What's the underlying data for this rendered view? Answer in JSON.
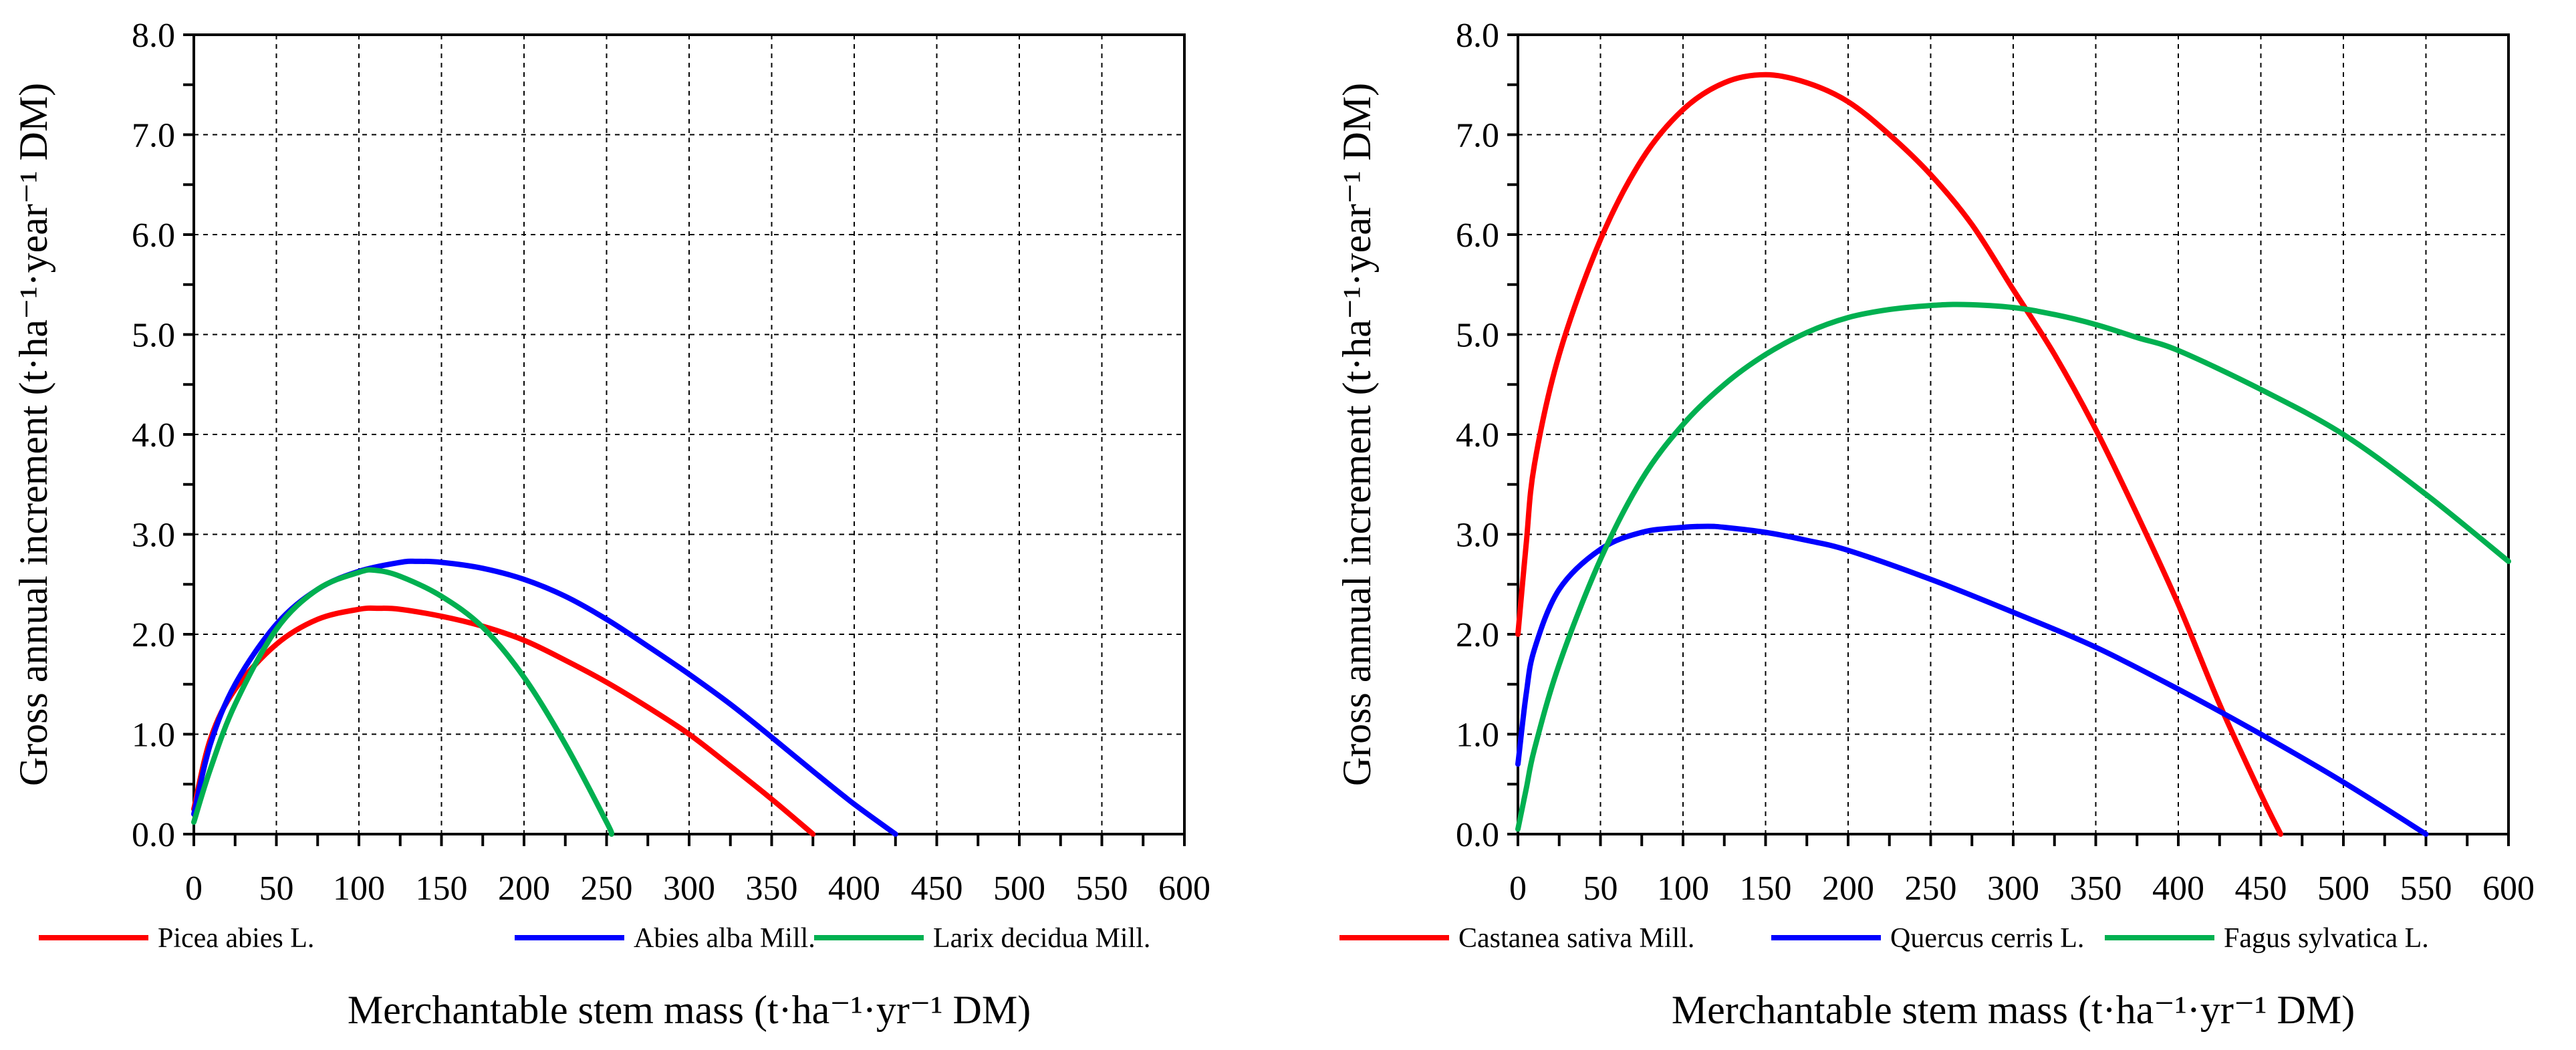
{
  "chart_data": [
    {
      "type": "line",
      "xlabel": "Merchantable stem mass (t·ha⁻¹·yr⁻¹  DM)",
      "ylabel": "Gross annual increment (t·ha⁻¹·year⁻¹ DM)",
      "xlim": [
        0,
        600
      ],
      "ylim": [
        0,
        8
      ],
      "x_ticks": [
        0,
        50,
        100,
        150,
        200,
        250,
        300,
        350,
        400,
        450,
        500,
        550,
        600
      ],
      "x_tick_labels": [
        "0",
        "50",
        "100",
        "150",
        "200",
        "250",
        "300",
        "350",
        "400",
        "450",
        "500",
        "550",
        "600"
      ],
      "y_ticks": [
        0,
        1,
        2,
        3,
        4,
        5,
        6,
        7,
        8
      ],
      "y_tick_labels": [
        "0.0",
        "1.0",
        "2.0",
        "3.0",
        "4.0",
        "5.0",
        "6.0",
        "7.0",
        "8.0"
      ],
      "grid": true,
      "legend_position": "bottom",
      "series": [
        {
          "name": "Picea abies L.",
          "color": "#ff0000",
          "x": [
            0,
            10,
            25,
            50,
            75,
            100,
            112,
            125,
            150,
            175,
            200,
            225,
            250,
            275,
            300,
            325,
            350,
            375
          ],
          "y": [
            0.25,
            0.95,
            1.45,
            1.9,
            2.15,
            2.25,
            2.26,
            2.25,
            2.18,
            2.08,
            1.94,
            1.74,
            1.52,
            1.27,
            1.0,
            0.68,
            0.35,
            0.0
          ]
        },
        {
          "name": "Abies alba Mill.",
          "color": "#0000ff",
          "x": [
            0,
            10,
            25,
            50,
            75,
            100,
            125,
            135,
            150,
            175,
            200,
            225,
            250,
            275,
            300,
            325,
            350,
            375,
            400,
            425
          ],
          "y": [
            0.2,
            0.9,
            1.5,
            2.1,
            2.45,
            2.63,
            2.72,
            2.73,
            2.72,
            2.66,
            2.55,
            2.38,
            2.15,
            1.88,
            1.6,
            1.3,
            0.97,
            0.63,
            0.3,
            0.0
          ]
        },
        {
          "name": "Larix decidua Mill.",
          "color": "#00b050",
          "x": [
            0,
            10,
            25,
            50,
            75,
            100,
            110,
            125,
            150,
            175,
            200,
            225,
            250,
            253
          ],
          "y": [
            0.12,
            0.65,
            1.3,
            2.05,
            2.45,
            2.62,
            2.64,
            2.58,
            2.38,
            2.07,
            1.57,
            0.9,
            0.12,
            0.0
          ]
        }
      ]
    },
    {
      "type": "line",
      "xlabel": "Merchantable stem mass (t·ha⁻¹·yr⁻¹  DM)",
      "ylabel": "Gross annual increment (t·ha⁻¹·year⁻¹ DM)",
      "xlim": [
        0,
        600
      ],
      "ylim": [
        0,
        8
      ],
      "x_ticks": [
        0,
        50,
        100,
        150,
        200,
        250,
        300,
        350,
        400,
        450,
        500,
        550,
        600
      ],
      "x_tick_labels": [
        "0",
        "50",
        "100",
        "150",
        "200",
        "250",
        "300",
        "350",
        "400",
        "450",
        "500",
        "550",
        "600"
      ],
      "y_ticks": [
        0,
        1,
        2,
        3,
        4,
        5,
        6,
        7,
        8
      ],
      "y_tick_labels": [
        "0.0",
        "1.0",
        "2.0",
        "3.0",
        "4.0",
        "5.0",
        "6.0",
        "7.0",
        "8.0"
      ],
      "grid": true,
      "legend_position": "bottom",
      "series": [
        {
          "name": "Castanea sativa Mill.",
          "color": "#ff0000",
          "x": [
            0,
            5,
            10,
            25,
            50,
            75,
            100,
            125,
            150,
            175,
            200,
            225,
            250,
            275,
            300,
            325,
            350,
            375,
            400,
            425,
            450,
            462
          ],
          "y": [
            2.0,
            2.9,
            3.7,
            4.8,
            5.95,
            6.75,
            7.25,
            7.52,
            7.6,
            7.52,
            7.33,
            7.0,
            6.6,
            6.1,
            5.45,
            4.8,
            4.05,
            3.2,
            2.3,
            1.3,
            0.4,
            0.0
          ]
        },
        {
          "name": "Quercus cerris L.",
          "color": "#0000ff",
          "x": [
            0,
            5,
            10,
            25,
            50,
            75,
            100,
            115,
            125,
            150,
            175,
            200,
            250,
            300,
            350,
            400,
            450,
            500,
            550
          ],
          "y": [
            0.7,
            1.4,
            1.85,
            2.45,
            2.85,
            3.02,
            3.07,
            3.08,
            3.07,
            3.02,
            2.94,
            2.84,
            2.55,
            2.22,
            1.87,
            1.45,
            1.0,
            0.52,
            0.0
          ]
        },
        {
          "name": "Fagus sylvatica L.",
          "color": "#00b050",
          "x": [
            0,
            5,
            10,
            25,
            50,
            75,
            100,
            125,
            150,
            175,
            200,
            225,
            250,
            270,
            300,
            325,
            350,
            375,
            400,
            450,
            500,
            550,
            600
          ],
          "y": [
            0.05,
            0.45,
            0.85,
            1.7,
            2.75,
            3.55,
            4.1,
            4.5,
            4.8,
            5.02,
            5.17,
            5.25,
            5.29,
            5.3,
            5.27,
            5.2,
            5.1,
            4.97,
            4.84,
            4.45,
            4.0,
            3.4,
            2.73
          ]
        }
      ]
    }
  ]
}
